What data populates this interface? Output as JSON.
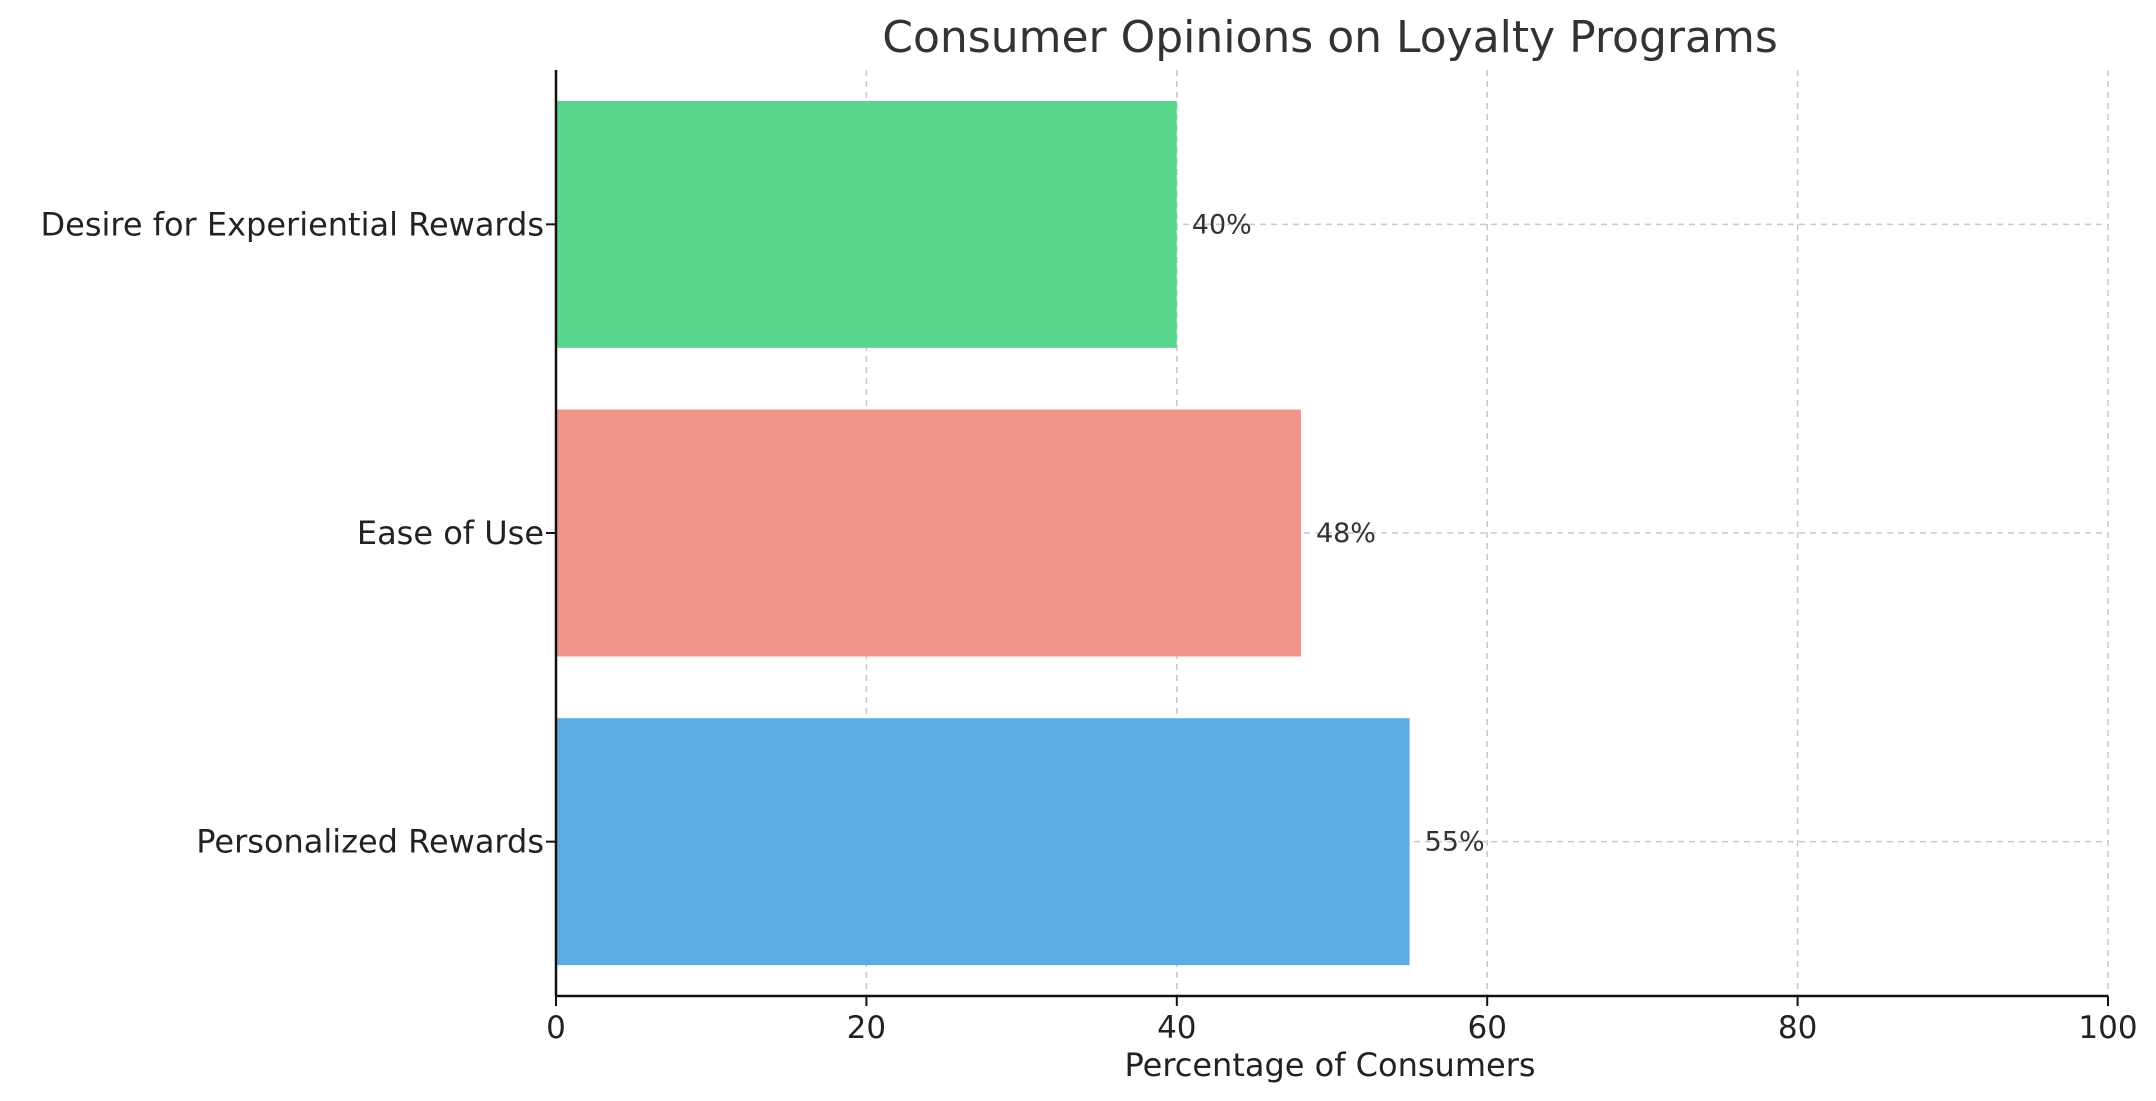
{
  "chart_data": {
    "type": "bar",
    "orientation": "horizontal",
    "title": "Consumer Opinions on Loyalty Programs",
    "xlabel": "Percentage of Consumers",
    "ylabel": "",
    "xlim": [
      0,
      100
    ],
    "xticks": [
      "0",
      "20",
      "40",
      "60",
      "80",
      "100"
    ],
    "grid": true,
    "categories": [
      "Personalized Rewards",
      "Ease of Use",
      "Desire for Experiential Rewards"
    ],
    "values": [
      55,
      48,
      40
    ],
    "value_labels": [
      "55%",
      "48%",
      "40%"
    ],
    "colors": [
      "#5dade2",
      "#f1948a",
      "#58d68d"
    ]
  }
}
